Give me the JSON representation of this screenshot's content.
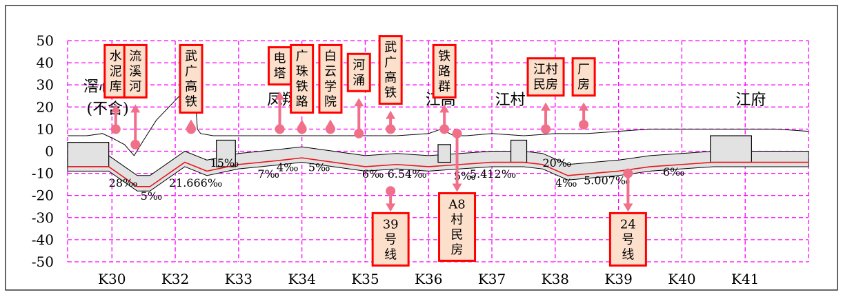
{
  "chart_data": {
    "type": "line",
    "title": "",
    "xlabel": "",
    "ylabel": "",
    "ylim": [
      -50,
      50
    ],
    "xlim": [
      29.3,
      41
    ],
    "grid": true,
    "y_ticks": [
      "50",
      "40",
      "30",
      "20",
      "10",
      "0",
      "-10",
      "-20",
      "-30",
      "-40",
      "-50"
    ],
    "x_ticks": [
      {
        "label": "K30",
        "x": 30
      },
      {
        "label": "K32",
        "x": 31
      },
      {
        "label": "K33",
        "x": 32
      },
      {
        "label": "K34",
        "x": 33
      },
      {
        "label": "K35",
        "x": 34
      },
      {
        "label": "K36",
        "x": 35
      },
      {
        "label": "K37",
        "x": 36
      },
      {
        "label": "K38",
        "x": 37
      },
      {
        "label": "K39",
        "x": 38
      },
      {
        "label": "K40",
        "x": 39
      },
      {
        "label": "K41",
        "x": 40
      }
    ],
    "series": [
      {
        "role": "ground",
        "color": "#000000",
        "x": [
          29.3,
          29.6,
          29.85,
          30.0,
          30.2,
          30.35,
          30.5,
          30.7,
          30.9,
          31.1,
          31.3,
          31.35,
          31.4,
          31.6,
          32.0,
          32.5,
          33.0,
          33.5,
          34.0,
          34.5,
          35.0,
          35.2,
          35.4,
          35.6,
          36.0,
          36.5,
          37.0,
          37.5,
          38.0,
          38.5,
          39.0,
          39.5,
          40.0,
          40.5,
          41.0
        ],
        "y": [
          7,
          7,
          8,
          6,
          3,
          -2,
          5,
          14,
          20,
          26,
          30,
          10,
          8,
          7,
          7,
          7,
          7,
          7,
          7,
          7,
          8,
          10,
          7,
          7,
          8,
          7,
          8,
          8,
          9,
          10,
          10,
          10,
          10,
          10,
          9
        ]
      },
      {
        "role": "track",
        "color": "#e8161b",
        "x": [
          29.3,
          29.95,
          30.4,
          30.6,
          31.15,
          31.5,
          32.0,
          32.7,
          33.0,
          33.5,
          34.0,
          34.5,
          35.0,
          35.5,
          36.0,
          36.5,
          36.8,
          37.2,
          38.0,
          38.5,
          39.0,
          39.5,
          40.0,
          40.5,
          41.0
        ],
        "y": [
          -7,
          -7,
          -16,
          -16,
          -5,
          -9,
          -6,
          -4,
          -3,
          -5,
          -7,
          -6,
          -7,
          -6,
          -5,
          -5,
          -6,
          -11,
          -9,
          -7,
          -6,
          -5,
          -5,
          -5,
          -5
        ]
      }
    ],
    "structures": [
      {
        "name": "station",
        "x_from": 29.3,
        "x_to": 29.95,
        "top": 4,
        "bottom": -7
      },
      {
        "name": "shaft",
        "x_from": 31.65,
        "x_to": 31.95,
        "top": 5,
        "bottom": -7
      },
      {
        "name": "shaft",
        "x_from": 35.15,
        "x_to": 35.35,
        "top": 3,
        "bottom": -5
      },
      {
        "name": "shaft",
        "x_from": 36.3,
        "x_to": 36.55,
        "top": 5,
        "bottom": -5
      },
      {
        "name": "station",
        "x_from": 39.45,
        "x_to": 40.1,
        "top": 7,
        "bottom": -5
      }
    ],
    "place_labels": [
      {
        "text": "滘心",
        "x": 29.55,
        "y": 27
      },
      {
        "text": "(不含)",
        "x": 29.6,
        "y": 17
      },
      {
        "text": "凤翔路",
        "x": 32.45,
        "y": 21
      },
      {
        "text": "江高",
        "x": 34.95,
        "y": 21
      },
      {
        "text": "江村",
        "x": 36.05,
        "y": 21
      },
      {
        "text": "江府",
        "x": 39.85,
        "y": 21
      }
    ],
    "grade_labels": [
      {
        "text": "28‰",
        "x": 29.95,
        "y": -16
      },
      {
        "text": "5‰",
        "x": 30.45,
        "y": -22
      },
      {
        "text": "21.666‰",
        "x": 30.9,
        "y": -16
      },
      {
        "text": "15‰",
        "x": 31.55,
        "y": -7
      },
      {
        "text": "7‰",
        "x": 32.3,
        "y": -12
      },
      {
        "text": "4‰",
        "x": 32.6,
        "y": -9
      },
      {
        "text": "5‰",
        "x": 33.1,
        "y": -9
      },
      {
        "text": "6‰",
        "x": 33.95,
        "y": -12
      },
      {
        "text": "6.54‰",
        "x": 34.35,
        "y": -12
      },
      {
        "text": "5‰",
        "x": 35.4,
        "y": -13
      },
      {
        "text": "5.412‰",
        "x": 35.65,
        "y": -12
      },
      {
        "text": "20‰",
        "x": 36.8,
        "y": -7
      },
      {
        "text": "4‰",
        "x": 37.0,
        "y": -16
      },
      {
        "text": "5.007‰",
        "x": 37.45,
        "y": -15
      },
      {
        "text": "6‰",
        "x": 38.7,
        "y": -11
      }
    ],
    "annotations": [
      {
        "lines": [
          "水",
          "泥",
          "库"
        ],
        "box_x": 30.06,
        "box_y": 48,
        "arrow_x": 30.06,
        "dot_y": 10,
        "direction": "up"
      },
      {
        "lines": [
          "流",
          "溪",
          "河"
        ],
        "box_x": 30.37,
        "box_y": 48,
        "arrow_x": 30.37,
        "dot_y": 3,
        "direction": "up"
      },
      {
        "lines": [
          "武",
          "广",
          "高",
          "铁"
        ],
        "box_x": 31.25,
        "box_y": 48,
        "arrow_x": 31.25,
        "dot_y": 10,
        "direction": "up"
      },
      {
        "lines": [
          "电",
          "塔"
        ],
        "box_x": 32.65,
        "box_y": 47,
        "arrow_x": 32.65,
        "dot_y": 10,
        "direction": "up"
      },
      {
        "lines": [
          "广",
          "珠",
          "铁",
          "路"
        ],
        "box_x": 33.0,
        "box_y": 48,
        "arrow_x": 33.0,
        "dot_y": 10,
        "direction": "up"
      },
      {
        "lines": [
          "白",
          "云",
          "学",
          "院"
        ],
        "box_x": 33.45,
        "box_y": 48,
        "arrow_x": 33.45,
        "dot_y": 10,
        "direction": "up"
      },
      {
        "lines": [
          "河",
          "涌"
        ],
        "box_x": 33.9,
        "box_y": 44,
        "arrow_x": 33.9,
        "dot_y": 8,
        "direction": "up"
      },
      {
        "lines": [
          "武",
          "广",
          "高",
          "铁"
        ],
        "box_x": 34.4,
        "box_y": 52,
        "arrow_x": 34.4,
        "dot_y": 10,
        "direction": "up"
      },
      {
        "lines": [
          "铁",
          "路",
          "群"
        ],
        "box_x": 35.25,
        "box_y": 48,
        "arrow_x": 35.25,
        "dot_y": 10,
        "direction": "up"
      },
      {
        "lines": [
          "江村",
          "民房"
        ],
        "box_x": 36.85,
        "box_y": 42,
        "arrow_x": 36.85,
        "dot_y": 10,
        "direction": "up"
      },
      {
        "lines": [
          "厂",
          "房"
        ],
        "box_x": 37.45,
        "box_y": 42,
        "arrow_x": 37.45,
        "dot_y": 12,
        "direction": "up"
      },
      {
        "lines": [
          "39",
          "号",
          "线"
        ],
        "box_x": 34.4,
        "box_y": -28,
        "arrow_x": 34.4,
        "dot_y": -18,
        "direction": "down"
      },
      {
        "lines": [
          "A8",
          "村",
          "民",
          "房"
        ],
        "box_x": 35.45,
        "box_y": -19,
        "arrow_x": 35.45,
        "dot_y": 8,
        "direction": "down"
      },
      {
        "lines": [
          "24",
          "号",
          "线"
        ],
        "box_x": 38.15,
        "box_y": -28,
        "arrow_x": 38.15,
        "dot_y": -10,
        "direction": "down"
      }
    ],
    "colors": {
      "grid": "#ff00ff",
      "box_fill": "#fde0cc",
      "box_border": "#ff0000",
      "arrow": "#f0708a",
      "tunnel_fill": "#e2e2e2",
      "track": "#e8161b",
      "ground": "#000000"
    }
  }
}
